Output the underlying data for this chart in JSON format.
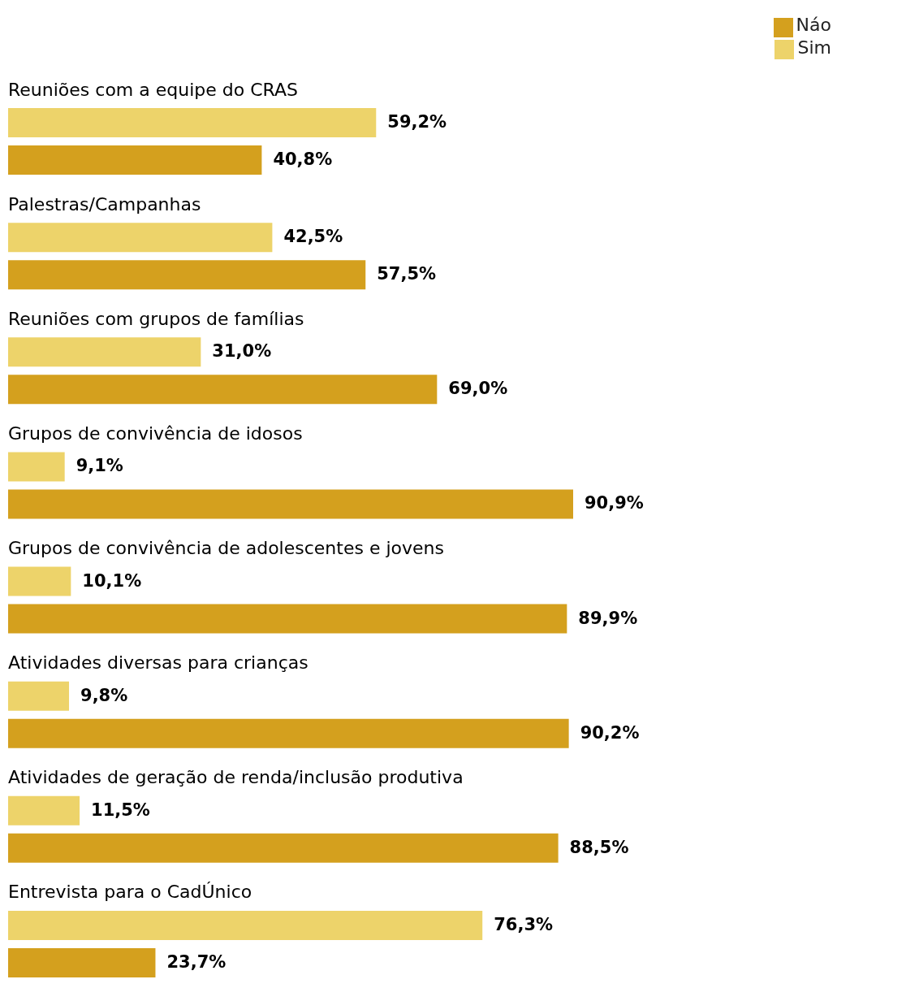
{
  "chart_data": {
    "type": "bar",
    "orientation": "horizontal",
    "legend": "top right",
    "categories": [
      "Reuniões com a equipe do CRAS",
      "Palestras/Campanhas",
      "Reuniões com grupos de famílias",
      "Grupos de convivência de idosos",
      "Grupos de convivência de adolescentes e jovens",
      "Atividades diversas para crianças",
      "Atividades de geração de renda/inclusão produtiva",
      "Entrevista para o CadÚnico"
    ],
    "series": [
      {
        "name": "Sim",
        "color": "#edd36a",
        "values": [
          59.2,
          42.5,
          31.0,
          9.1,
          10.1,
          9.8,
          11.5,
          76.3
        ],
        "value_labels": [
          "59,2%",
          "42,5%",
          "31,0%",
          "9,1%",
          "10,1%",
          "9,8%",
          "11,5%",
          "76,3%"
        ]
      },
      {
        "name": "Náo",
        "color": "#d4a01e",
        "values": [
          40.8,
          57.5,
          69.0,
          90.9,
          89.9,
          90.2,
          88.5,
          23.7
        ],
        "value_labels": [
          "40,8%",
          "57,5%",
          "69,0%",
          "90,9%",
          "89,9%",
          "90,2%",
          "88,5%",
          "23,7%"
        ]
      }
    ]
  }
}
